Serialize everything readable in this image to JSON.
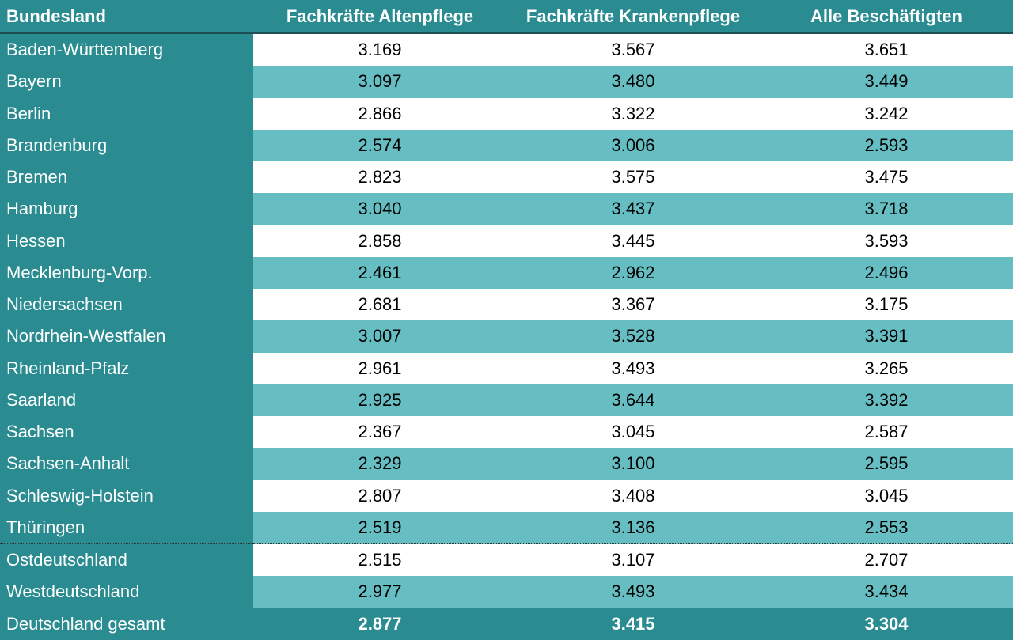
{
  "table": {
    "header": [
      "Bundesland",
      "Fachkräfte Altenpflege",
      "Fachkräfte Krankenpflege",
      "Alle Beschäftigten"
    ],
    "rows": [
      [
        "Baden-Württemberg",
        "3.169",
        "3.567",
        "3.651"
      ],
      [
        "Bayern",
        "3.097",
        "3.480",
        "3.449"
      ],
      [
        "Berlin",
        "2.866",
        "3.322",
        "3.242"
      ],
      [
        "Brandenburg",
        "2.574",
        "3.006",
        "2.593"
      ],
      [
        "Bremen",
        "2.823",
        "3.575",
        "3.475"
      ],
      [
        "Hamburg",
        "3.040",
        "3.437",
        "3.718"
      ],
      [
        "Hessen",
        "2.858",
        "3.445",
        "3.593"
      ],
      [
        "Mecklenburg-Vorp.",
        "2.461",
        "2.962",
        "2.496"
      ],
      [
        "Niedersachsen",
        "2.681",
        "3.367",
        "3.175"
      ],
      [
        "Nordrhein-Westfalen",
        "3.007",
        "3.528",
        "3.391"
      ],
      [
        "Rheinland-Pfalz",
        "2.961",
        "3.493",
        "3.265"
      ],
      [
        "Saarland",
        "2.925",
        "3.644",
        "3.392"
      ],
      [
        "Sachsen",
        "2.367",
        "3.045",
        "2.587"
      ],
      [
        "Sachsen-Anhalt",
        "2.329",
        "3.100",
        "2.595"
      ],
      [
        "Schleswig-Holstein",
        "2.807",
        "3.408",
        "3.045"
      ],
      [
        "Thüringen",
        "2.519",
        "3.136",
        "2.553"
      ],
      [
        "Ostdeutschland",
        "2.515",
        "3.107",
        "2.707"
      ],
      [
        "Westdeutschland",
        "2.977",
        "3.493",
        "3.434"
      ],
      [
        "Deutschland gesamt",
        "2.877",
        "3.415",
        "3.304"
      ]
    ]
  }
}
